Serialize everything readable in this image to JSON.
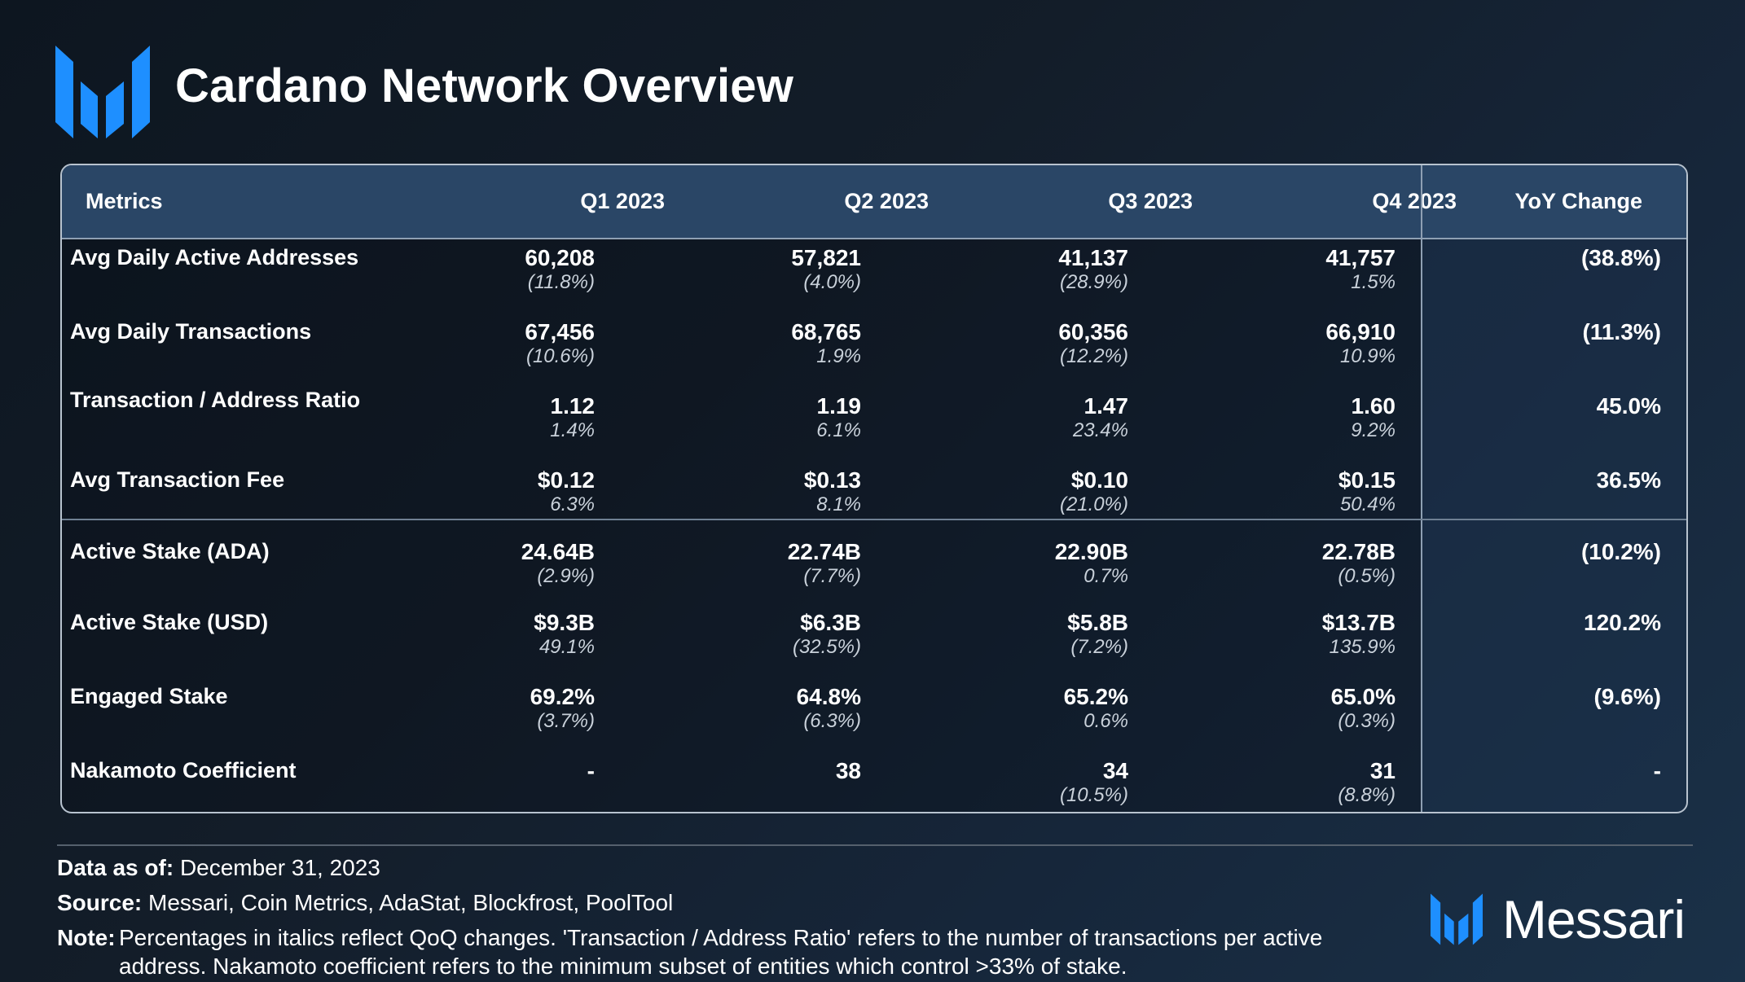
{
  "header": {
    "title": "Cardano Network Overview"
  },
  "table": {
    "columns": {
      "metrics": "Metrics",
      "q1": "Q1 2023",
      "q2": "Q2 2023",
      "q3": "Q3 2023",
      "q4": "Q4 2023",
      "yoy": "YoY Change"
    },
    "rows": [
      {
        "metric": "Avg Daily Active Addresses",
        "values": [
          "60,208",
          "57,821",
          "41,137",
          "41,757"
        ],
        "changes": [
          "(11.8%)",
          "(4.0%)",
          "(28.9%)",
          "1.5%"
        ],
        "yoy": "(38.8%)"
      },
      {
        "metric": "Avg Daily Transactions",
        "values": [
          "67,456",
          "68,765",
          "60,356",
          "66,910"
        ],
        "changes": [
          "(10.6%)",
          "1.9%",
          "(12.2%)",
          "10.9%"
        ],
        "yoy": "(11.3%)"
      },
      {
        "metric": "Transaction / Address Ratio",
        "values": [
          "1.12",
          "1.19",
          "1.47",
          "1.60"
        ],
        "changes": [
          "1.4%",
          "6.1%",
          "23.4%",
          "9.2%"
        ],
        "yoy": "45.0%"
      },
      {
        "metric": "Avg Transaction Fee",
        "values": [
          "$0.12",
          "$0.13",
          "$0.10",
          "$0.15"
        ],
        "changes": [
          "6.3%",
          "8.1%",
          "(21.0%)",
          "50.4%"
        ],
        "yoy": "36.5%"
      },
      {
        "metric": "Active Stake (ADA)",
        "values": [
          "24.64B",
          "22.74B",
          "22.90B",
          "22.78B"
        ],
        "changes": [
          "(2.9%)",
          "(7.7%)",
          "0.7%",
          "(0.5%)"
        ],
        "yoy": "(10.2%)"
      },
      {
        "metric": "Active Stake (USD)",
        "values": [
          "$9.3B",
          "$6.3B",
          "$5.8B",
          "$13.7B"
        ],
        "changes": [
          "49.1%",
          "(32.5%)",
          "(7.2%)",
          "135.9%"
        ],
        "yoy": "120.2%"
      },
      {
        "metric": "Engaged Stake",
        "values": [
          "69.2%",
          "64.8%",
          "65.2%",
          "65.0%"
        ],
        "changes": [
          "(3.7%)",
          "(6.3%)",
          "0.6%",
          "(0.3%)"
        ],
        "yoy": "(9.6%)"
      },
      {
        "metric": "Nakamoto Coefficient",
        "values": [
          "-",
          "38",
          "34",
          "31"
        ],
        "changes": [
          "",
          "",
          "(10.5%)",
          "(8.8%)"
        ],
        "yoy": "-"
      }
    ]
  },
  "footer": {
    "data_as_of_label": "Data as of:",
    "data_as_of_value": "December 31, 2023",
    "source_label": "Source:",
    "source_value": "Messari, Coin Metrics, AdaStat, Blockfrost, PoolTool",
    "note_label": "Note:",
    "note_value": "Percentages in italics reflect QoQ changes. 'Transaction / Address Ratio' refers to the number of transactions per active address. Nakamoto coefficient refers to the minimum subset of entities which control >33% of stake.",
    "brand": "Messari"
  },
  "colors": {
    "accent_blue": "#1e8fff",
    "header_bg": "#2a4666",
    "border": "#b8c3cf"
  },
  "chart_data": {
    "type": "table",
    "title": "Cardano Network Overview",
    "columns": [
      "Metrics",
      "Q1 2023",
      "Q2 2023",
      "Q3 2023",
      "Q4 2023",
      "YoY Change"
    ],
    "rows": [
      [
        "Avg Daily Active Addresses",
        "60,208 (11.8%)",
        "57,821 (4.0%)",
        "41,137 (28.9%)",
        "41,757 1.5%",
        "(38.8%)"
      ],
      [
        "Avg Daily Transactions",
        "67,456 (10.6%)",
        "68,765 1.9%",
        "60,356 (12.2%)",
        "66,910 10.9%",
        "(11.3%)"
      ],
      [
        "Transaction / Address Ratio",
        "1.12 1.4%",
        "1.19 6.1%",
        "1.47 23.4%",
        "1.60 9.2%",
        "45.0%"
      ],
      [
        "Avg Transaction Fee",
        "$0.12 6.3%",
        "$0.13 8.1%",
        "$0.10 (21.0%)",
        "$0.15 50.4%",
        "36.5%"
      ],
      [
        "Active Stake (ADA)",
        "24.64B (2.9%)",
        "22.74B (7.7%)",
        "22.90B 0.7%",
        "22.78B (0.5%)",
        "(10.2%)"
      ],
      [
        "Active Stake (USD)",
        "$9.3B 49.1%",
        "$6.3B (32.5%)",
        "$5.8B (7.2%)",
        "$13.7B 135.9%",
        "120.2%"
      ],
      [
        "Engaged Stake",
        "69.2% (3.7%)",
        "64.8% (6.3%)",
        "65.2% 0.6%",
        "65.0% (0.3%)",
        "(9.6%)"
      ],
      [
        "Nakamoto Coefficient",
        "-",
        "38",
        "34 (10.5%)",
        "31 (8.8%)",
        "-"
      ]
    ]
  }
}
